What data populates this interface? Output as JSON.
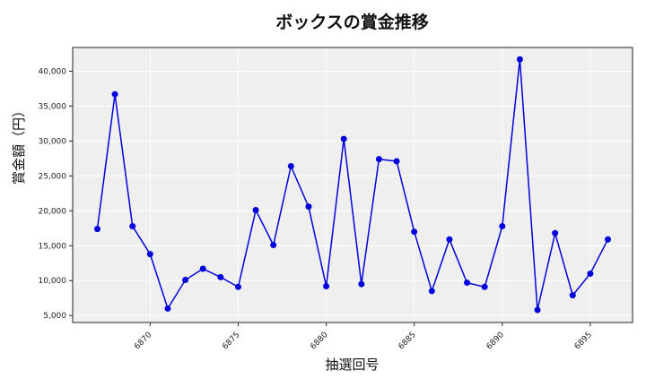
{
  "chart_data": {
    "type": "line",
    "title": "ボックスの賞金推移",
    "xlabel": "抽選回号",
    "ylabel": "賞金額（円）",
    "x": [
      6867,
      6868,
      6869,
      6870,
      6871,
      6872,
      6873,
      6874,
      6875,
      6876,
      6877,
      6878,
      6879,
      6880,
      6881,
      6882,
      6883,
      6884,
      6885,
      6886,
      6887,
      6888,
      6889,
      6890,
      6891,
      6892,
      6893,
      6894,
      6895,
      6896
    ],
    "series": [
      {
        "name": "ボックス",
        "values": [
          17400,
          36700,
          17800,
          13800,
          6000,
          10100,
          11700,
          10500,
          9100,
          20100,
          15100,
          26400,
          20600,
          9200,
          30300,
          9500,
          27400,
          27100,
          17000,
          8500,
          15900,
          9700,
          9100,
          17800,
          41700,
          5800,
          16800,
          7900,
          11000,
          15900
        ],
        "color": "#0000dd",
        "marker": "circle"
      }
    ],
    "xticks": [
      6870,
      6875,
      6880,
      6885,
      6890,
      6895
    ],
    "yticks": [
      5000,
      10000,
      15000,
      20000,
      25000,
      30000,
      35000,
      40000
    ],
    "ytick_labels": [
      "5,000",
      "10,000",
      "15,000",
      "20,000",
      "25,000",
      "30,000",
      "35,000",
      "40,000"
    ],
    "xlim": [
      6865.6,
      6897.4
    ],
    "ylim": [
      4000,
      43400
    ],
    "grid": true,
    "legend": "none",
    "background": "#efefef"
  }
}
